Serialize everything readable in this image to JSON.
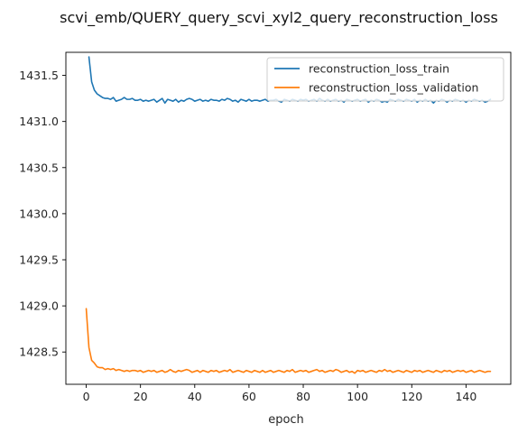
{
  "chart_data": {
    "type": "line",
    "title": "scvi_emb/QUERY_query_scvi_xyl2_query_reconstruction_loss",
    "xlabel": "epoch",
    "ylabel": "",
    "xlim": [
      -7.5,
      156.5
    ],
    "ylim": [
      1428.15,
      1431.75
    ],
    "xticks": [
      0,
      20,
      40,
      60,
      80,
      100,
      120,
      140
    ],
    "xtick_labels": [
      "0",
      "20",
      "40",
      "60",
      "80",
      "100",
      "120",
      "140"
    ],
    "yticks": [
      1428.5,
      1429.0,
      1429.5,
      1430.0,
      1430.5,
      1431.0,
      1431.5
    ],
    "ytick_labels": [
      "1428.5",
      "1429.0",
      "1429.5",
      "1430.0",
      "1430.5",
      "1431.0",
      "1431.5"
    ],
    "grid": false,
    "legend_position": "top-right",
    "series": [
      {
        "name": "reconstruction_loss_train",
        "color": "#1f77b4",
        "x_start": 1,
        "x_step": 1,
        "values": [
          1431.7,
          1431.43,
          1431.34,
          1431.3,
          1431.28,
          1431.26,
          1431.25,
          1431.25,
          1431.24,
          1431.26,
          1431.22,
          1431.23,
          1431.24,
          1431.26,
          1431.24,
          1431.24,
          1431.25,
          1431.23,
          1431.23,
          1431.24,
          1431.22,
          1431.23,
          1431.22,
          1431.23,
          1431.24,
          1431.21,
          1431.23,
          1431.25,
          1431.2,
          1431.24,
          1431.23,
          1431.22,
          1431.24,
          1431.21,
          1431.23,
          1431.22,
          1431.24,
          1431.25,
          1431.24,
          1431.22,
          1431.23,
          1431.24,
          1431.22,
          1431.23,
          1431.22,
          1431.24,
          1431.23,
          1431.23,
          1431.22,
          1431.24,
          1431.23,
          1431.25,
          1431.24,
          1431.22,
          1431.23,
          1431.21,
          1431.24,
          1431.23,
          1431.22,
          1431.24,
          1431.22,
          1431.23,
          1431.23,
          1431.22,
          1431.23,
          1431.24,
          1431.22,
          1431.23,
          1431.23,
          1431.24,
          1431.22,
          1431.21,
          1431.24,
          1431.23,
          1431.22,
          1431.24,
          1431.23,
          1431.22,
          1431.24,
          1431.23,
          1431.24,
          1431.22,
          1431.23,
          1431.24,
          1431.22,
          1431.25,
          1431.23,
          1431.22,
          1431.24,
          1431.22,
          1431.23,
          1431.24,
          1431.22,
          1431.23,
          1431.21,
          1431.24,
          1431.23,
          1431.22,
          1431.23,
          1431.24,
          1431.22,
          1431.23,
          1431.24,
          1431.21,
          1431.23,
          1431.22,
          1431.24,
          1431.23,
          1431.21,
          1431.22,
          1431.21,
          1431.24,
          1431.23,
          1431.22,
          1431.24,
          1431.23,
          1431.22,
          1431.24,
          1431.23,
          1431.22,
          1431.24,
          1431.21,
          1431.23,
          1431.22,
          1431.24,
          1431.22,
          1431.23,
          1431.2,
          1431.23,
          1431.22,
          1431.24,
          1431.23,
          1431.21,
          1431.23,
          1431.22,
          1431.24,
          1431.23,
          1431.22,
          1431.23,
          1431.21,
          1431.23,
          1431.22,
          1431.24,
          1431.23,
          1431.22,
          1431.23,
          1431.21,
          1431.22,
          1431.24
        ]
      },
      {
        "name": "reconstruction_loss_validation",
        "color": "#ff7f0e",
        "x_start": 0,
        "x_step": 1,
        "values": [
          1428.97,
          1428.55,
          1428.41,
          1428.38,
          1428.34,
          1428.33,
          1428.33,
          1428.31,
          1428.32,
          1428.31,
          1428.32,
          1428.3,
          1428.31,
          1428.3,
          1428.29,
          1428.3,
          1428.29,
          1428.3,
          1428.3,
          1428.29,
          1428.3,
          1428.28,
          1428.29,
          1428.3,
          1428.29,
          1428.3,
          1428.28,
          1428.29,
          1428.3,
          1428.28,
          1428.29,
          1428.31,
          1428.29,
          1428.28,
          1428.3,
          1428.29,
          1428.3,
          1428.31,
          1428.3,
          1428.28,
          1428.29,
          1428.3,
          1428.28,
          1428.3,
          1428.29,
          1428.28,
          1428.3,
          1428.29,
          1428.3,
          1428.28,
          1428.29,
          1428.3,
          1428.29,
          1428.31,
          1428.28,
          1428.29,
          1428.3,
          1428.29,
          1428.28,
          1428.3,
          1428.29,
          1428.28,
          1428.3,
          1428.29,
          1428.28,
          1428.3,
          1428.28,
          1428.29,
          1428.3,
          1428.28,
          1428.29,
          1428.3,
          1428.29,
          1428.28,
          1428.3,
          1428.29,
          1428.31,
          1428.28,
          1428.29,
          1428.3,
          1428.29,
          1428.3,
          1428.28,
          1428.29,
          1428.3,
          1428.31,
          1428.29,
          1428.3,
          1428.28,
          1428.29,
          1428.3,
          1428.29,
          1428.31,
          1428.3,
          1428.28,
          1428.29,
          1428.3,
          1428.28,
          1428.29,
          1428.27,
          1428.3,
          1428.29,
          1428.3,
          1428.28,
          1428.29,
          1428.3,
          1428.29,
          1428.28,
          1428.3,
          1428.29,
          1428.31,
          1428.29,
          1428.3,
          1428.28,
          1428.29,
          1428.3,
          1428.29,
          1428.28,
          1428.3,
          1428.29,
          1428.28,
          1428.3,
          1428.29,
          1428.3,
          1428.28,
          1428.29,
          1428.3,
          1428.29,
          1428.28,
          1428.3,
          1428.29,
          1428.28,
          1428.3,
          1428.29,
          1428.3,
          1428.28,
          1428.29,
          1428.3,
          1428.29,
          1428.3,
          1428.28,
          1428.29,
          1428.3,
          1428.28,
          1428.29,
          1428.3,
          1428.29,
          1428.28,
          1428.29,
          1428.29
        ]
      }
    ]
  }
}
